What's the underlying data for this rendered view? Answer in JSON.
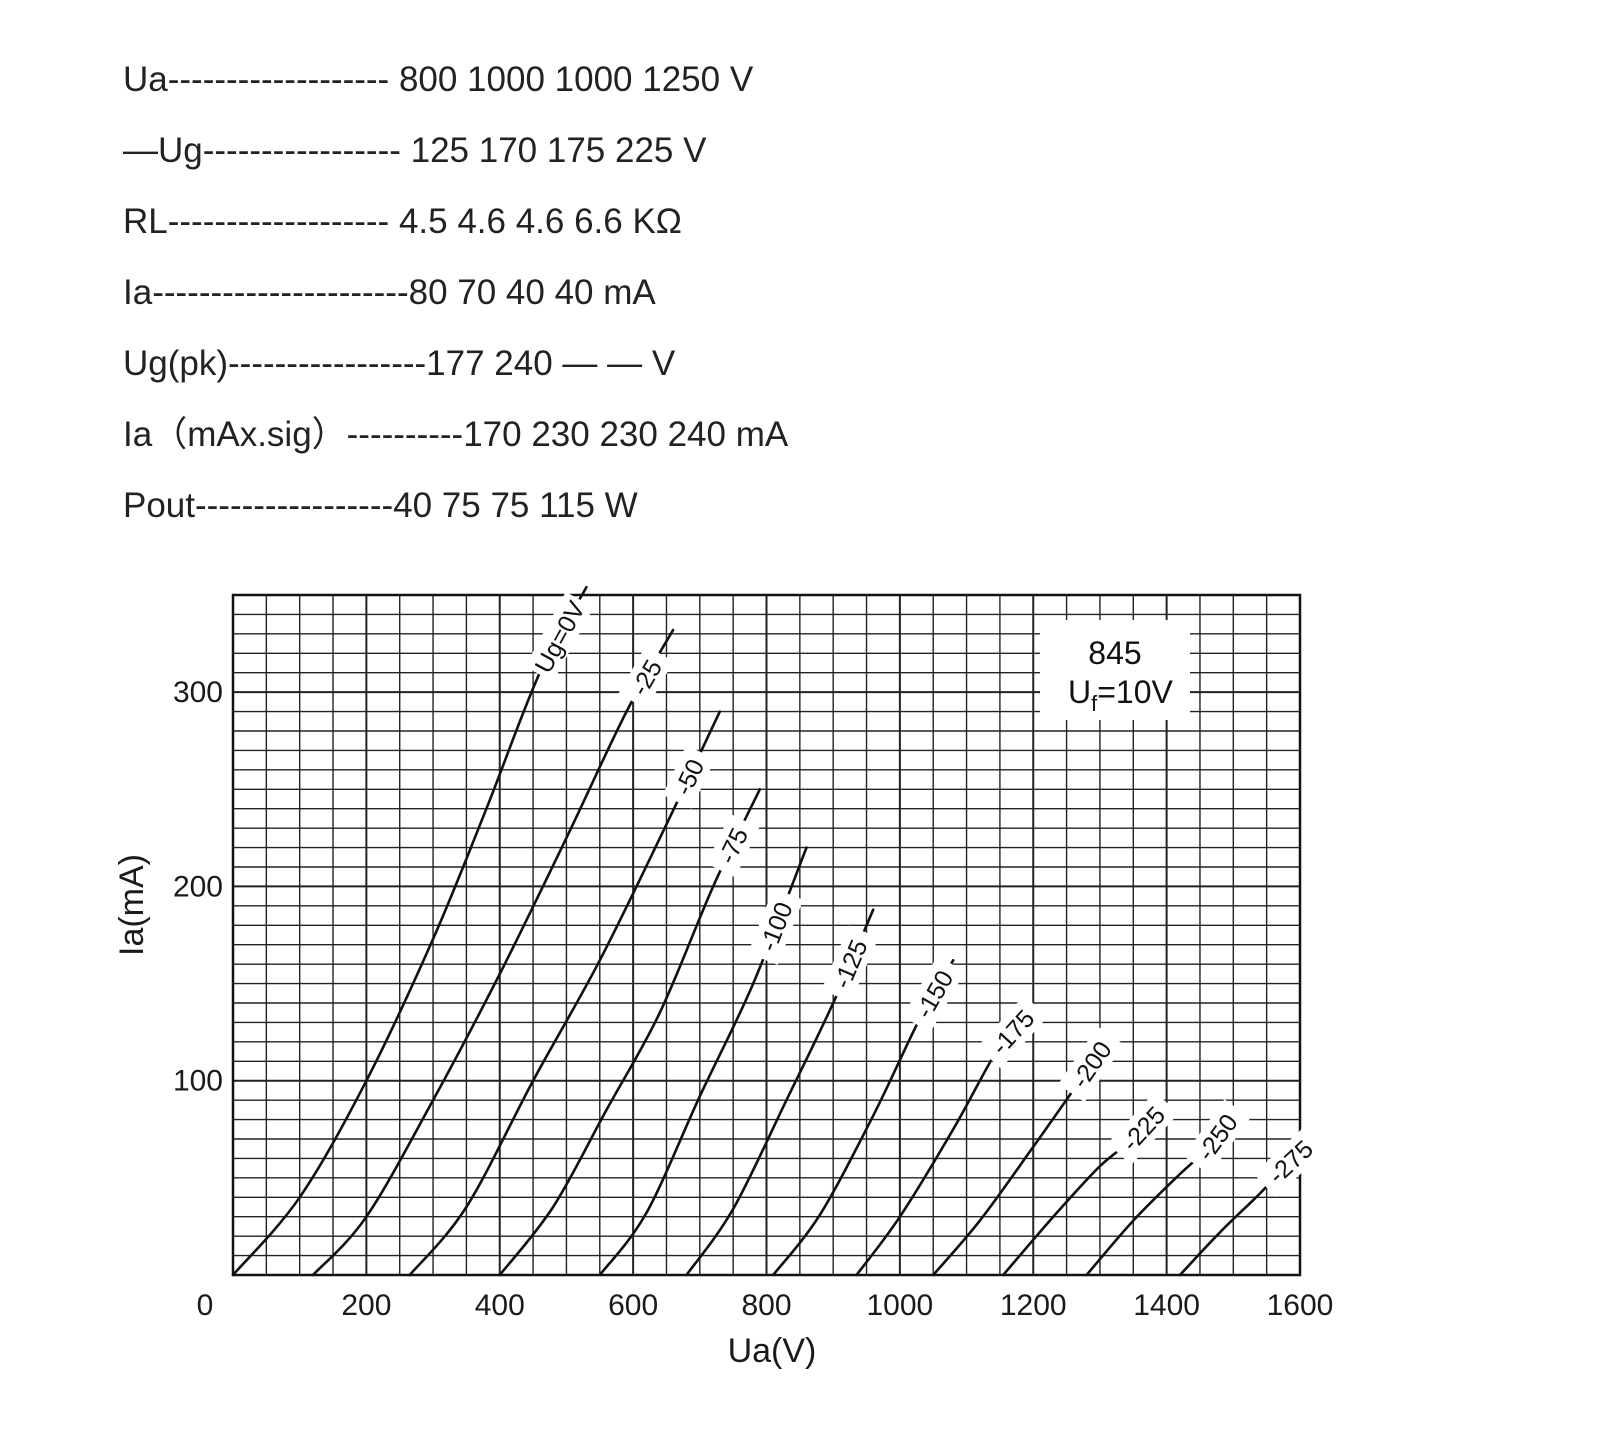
{
  "specs": [
    {
      "label": "Ua",
      "dashes": "-------------------",
      "values": "800 1000 1000 1250 V"
    },
    {
      "label": "—Ug",
      "dashes": "-----------------",
      "values": "125 170 175 225 V"
    },
    {
      "label": "RL",
      "dashes": "-------------------",
      "values": "4.5 4.6 4.6 6.6 KΩ"
    },
    {
      "label": "Ia",
      "dashes": "----------------------",
      "values": "80 70 40 40 mA"
    },
    {
      "label": "Ug(pk)",
      "dashes": "-----------------",
      "values": "177 240 — — V"
    },
    {
      "label": "Ia（mAx.sig）",
      "dashes": "----------",
      "values": "170 230 230 240 mA"
    },
    {
      "label": "Pout",
      "dashes": "-----------------",
      "values": "40 75 75 115 W"
    }
  ],
  "chart_data": {
    "type": "line",
    "xlabel": "Ua(V)",
    "ylabel": "Ia(mA)",
    "xlim": [
      0,
      1600
    ],
    "ylim": [
      0,
      350
    ],
    "x_ticks": [
      "0",
      "200",
      "400",
      "600",
      "800",
      "1000",
      "1200",
      "1400",
      "1600"
    ],
    "y_ticks": [
      "100",
      "200",
      "300"
    ],
    "grid": true,
    "annotation": {
      "tube": "845",
      "filament_main": "U",
      "filament_sub": "f",
      "filament_value": "=10V"
    },
    "series": [
      {
        "name": "Ug=0V",
        "x": [
          0,
          100,
          200,
          300,
          380,
          460,
          530
        ],
        "y": [
          0,
          40,
          100,
          173,
          240,
          310,
          354
        ]
      },
      {
        "name": "-25",
        "x": [
          120,
          200,
          300,
          400,
          500,
          590,
          660
        ],
        "y": [
          0,
          30,
          90,
          155,
          225,
          290,
          332
        ]
      },
      {
        "name": "-50",
        "x": [
          265,
          350,
          450,
          550,
          650,
          730
        ],
        "y": [
          0,
          35,
          100,
          162,
          232,
          290
        ]
      },
      {
        "name": "-75",
        "x": [
          400,
          480,
          560,
          640,
          720,
          790
        ],
        "y": [
          0,
          35,
          85,
          135,
          200,
          250
        ]
      },
      {
        "name": "-100",
        "x": [
          550,
          620,
          700,
          780,
          860
        ],
        "y": [
          0,
          32,
          92,
          150,
          220
        ]
      },
      {
        "name": "-125",
        "x": [
          680,
          750,
          830,
          900,
          960
        ],
        "y": [
          0,
          34,
          90,
          140,
          188
        ]
      },
      {
        "name": "-150",
        "x": [
          810,
          880,
          960,
          1030,
          1080
        ],
        "y": [
          0,
          31,
          82,
          132,
          162
        ]
      },
      {
        "name": "-175",
        "x": [
          935,
          1000,
          1080,
          1150,
          1195
        ],
        "y": [
          0,
          30,
          75,
          118,
          135
        ]
      },
      {
        "name": "-200",
        "x": [
          1050,
          1120,
          1200,
          1270,
          1310
        ],
        "y": [
          0,
          28,
          66,
          100,
          120
        ]
      },
      {
        "name": "-225",
        "x": [
          1155,
          1230,
          1300,
          1350,
          1385
        ],
        "y": [
          0,
          30,
          56,
          70,
          83
        ]
      },
      {
        "name": "-250",
        "x": [
          1280,
          1350,
          1420,
          1465,
          1490
        ],
        "y": [
          0,
          28,
          52,
          66,
          78
        ]
      },
      {
        "name": "-275",
        "x": [
          1420,
          1480,
          1540,
          1575,
          1600
        ],
        "y": [
          0,
          22,
          42,
          55,
          63
        ]
      }
    ]
  }
}
